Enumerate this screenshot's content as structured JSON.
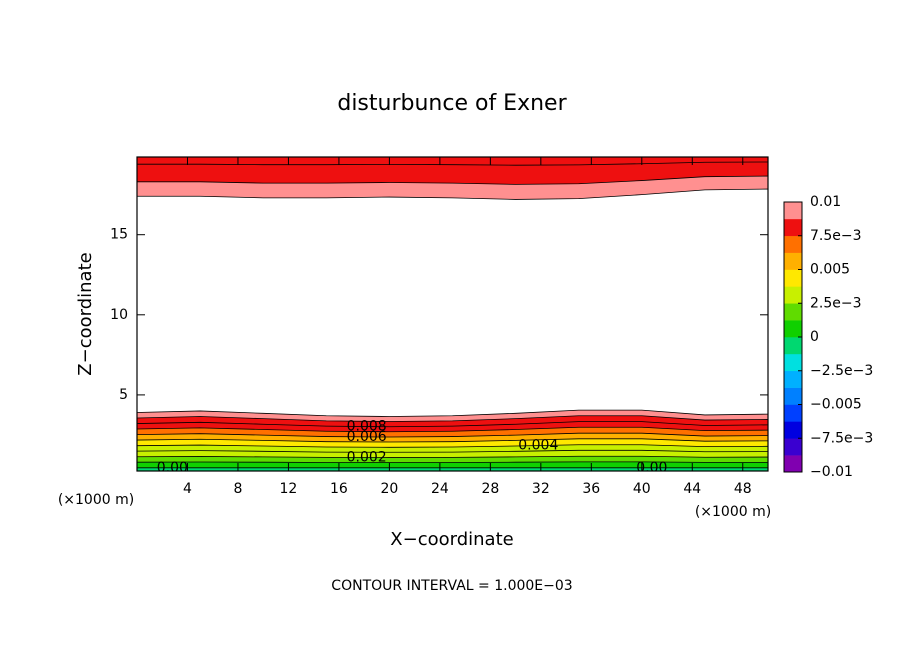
{
  "chart_data": {
    "type": "contour",
    "title": "disturbunce of Exner",
    "x_label": "X−coordinate",
    "y_label": "Z−coordinate",
    "x_unit": "(×1000 m)",
    "y_unit": "(×1000 m)",
    "footer": "CONTOUR INTERVAL = 1.000E−03",
    "xlim": [
      0,
      50
    ],
    "xticks": [
      4,
      8,
      12,
      16,
      20,
      24,
      28,
      32,
      36,
      40,
      44,
      48
    ],
    "ylim": [
      0.25,
      19.85
    ],
    "yticks": [
      5,
      10,
      15
    ],
    "x": [
      0,
      5,
      10,
      15,
      20,
      25,
      30,
      35,
      40,
      45,
      50
    ],
    "contour_groups": [
      {
        "lines": [
          {
            "level": 0,
            "z": [
              0.45,
              0.45,
              0.45,
              0.45,
              0.45,
              0.45,
              0.45,
              0.45,
              0.45,
              0.45,
              0.45
            ],
            "labels": [
              "0.00",
              "0.00"
            ]
          },
          {
            "level": 0.001,
            "z": [
              0.8,
              0.81,
              0.8,
              0.78,
              0.78,
              0.78,
              0.8,
              0.82,
              0.82,
              0.79,
              0.79
            ]
          },
          {
            "level": 0.002,
            "z": [
              1.14,
              1.16,
              1.13,
              1.1,
              1.09,
              1.1,
              1.13,
              1.17,
              1.17,
              1.11,
              1.12
            ],
            "labels": [
              "0.002"
            ]
          },
          {
            "level": 0.003,
            "z": [
              1.49,
              1.52,
              1.48,
              1.43,
              1.42,
              1.43,
              1.48,
              1.54,
              1.54,
              1.45,
              1.46
            ]
          },
          {
            "level": 0.004,
            "z": [
              1.83,
              1.87,
              1.81,
              1.75,
              1.73,
              1.75,
              1.81,
              1.89,
              1.89,
              1.77,
              1.79
            ],
            "labels": [
              "0.004"
            ]
          },
          {
            "level": 0.005,
            "z": [
              2.18,
              2.23,
              2.16,
              2.08,
              2.06,
              2.08,
              2.16,
              2.26,
              2.26,
              2.11,
              2.13
            ]
          },
          {
            "level": 0.006,
            "z": [
              2.52,
              2.58,
              2.49,
              2.4,
              2.37,
              2.4,
              2.49,
              2.61,
              2.61,
              2.43,
              2.46
            ],
            "labels": [
              "0.006"
            ]
          },
          {
            "level": 0.007,
            "z": [
              2.87,
              2.94,
              2.84,
              2.73,
              2.7,
              2.73,
              2.84,
              2.98,
              2.98,
              2.77,
              2.8
            ]
          },
          {
            "level": 0.008,
            "z": [
              3.21,
              3.29,
              3.17,
              3.05,
              3.01,
              3.05,
              3.17,
              3.33,
              3.33,
              3.09,
              3.13
            ],
            "labels": [
              "0.008"
            ]
          },
          {
            "level": 0.009,
            "z": [
              3.56,
              3.65,
              3.52,
              3.38,
              3.34,
              3.38,
              3.52,
              3.7,
              3.7,
              3.43,
              3.47
            ]
          },
          {
            "level": 0.01,
            "z": [
              3.9,
              4.0,
              3.85,
              3.7,
              3.65,
              3.7,
              3.85,
              4.05,
              4.05,
              3.75,
              3.8
            ]
          }
        ]
      },
      {
        "lines": [
          {
            "level": 0.01,
            "z": [
              17.4,
              17.4,
              17.3,
              17.3,
              17.35,
              17.3,
              17.2,
              17.25,
              17.5,
              17.8,
              17.85
            ]
          },
          {
            "level": 0.009,
            "z": [
              18.3,
              18.3,
              18.22,
              18.22,
              18.26,
              18.22,
              18.14,
              18.18,
              18.38,
              18.62,
              18.66
            ]
          },
          {
            "level": 0.008,
            "z": [
              19.4,
              19.4,
              19.37,
              19.37,
              19.39,
              19.37,
              19.34,
              19.36,
              19.43,
              19.52,
              19.54
            ]
          }
        ]
      }
    ],
    "colorbar": {
      "lim": [
        -0.01,
        0.01
      ],
      "colors": [
        "#8000b0",
        "#3a00d0",
        "#0000e0",
        "#0040ff",
        "#0080ff",
        "#00b0ff",
        "#00e0e0",
        "#00d870",
        "#10d000",
        "#60dc00",
        "#c8f000",
        "#ffe800",
        "#ffb000",
        "#ff7000",
        "#ee1010",
        "#ff9090"
      ],
      "ticks": [
        {
          "value": -0.01,
          "label": "−0.01"
        },
        {
          "value": -0.0075,
          "label": "−7.5e−3"
        },
        {
          "value": -0.005,
          "label": "−0.005"
        },
        {
          "value": -0.0025,
          "label": "−2.5e−3"
        },
        0,
        {
          "value": 0.0025,
          "label": "2.5e−3"
        },
        0.005,
        {
          "value": 0.0075,
          "label": "7.5e−3"
        },
        0.01
      ]
    }
  }
}
